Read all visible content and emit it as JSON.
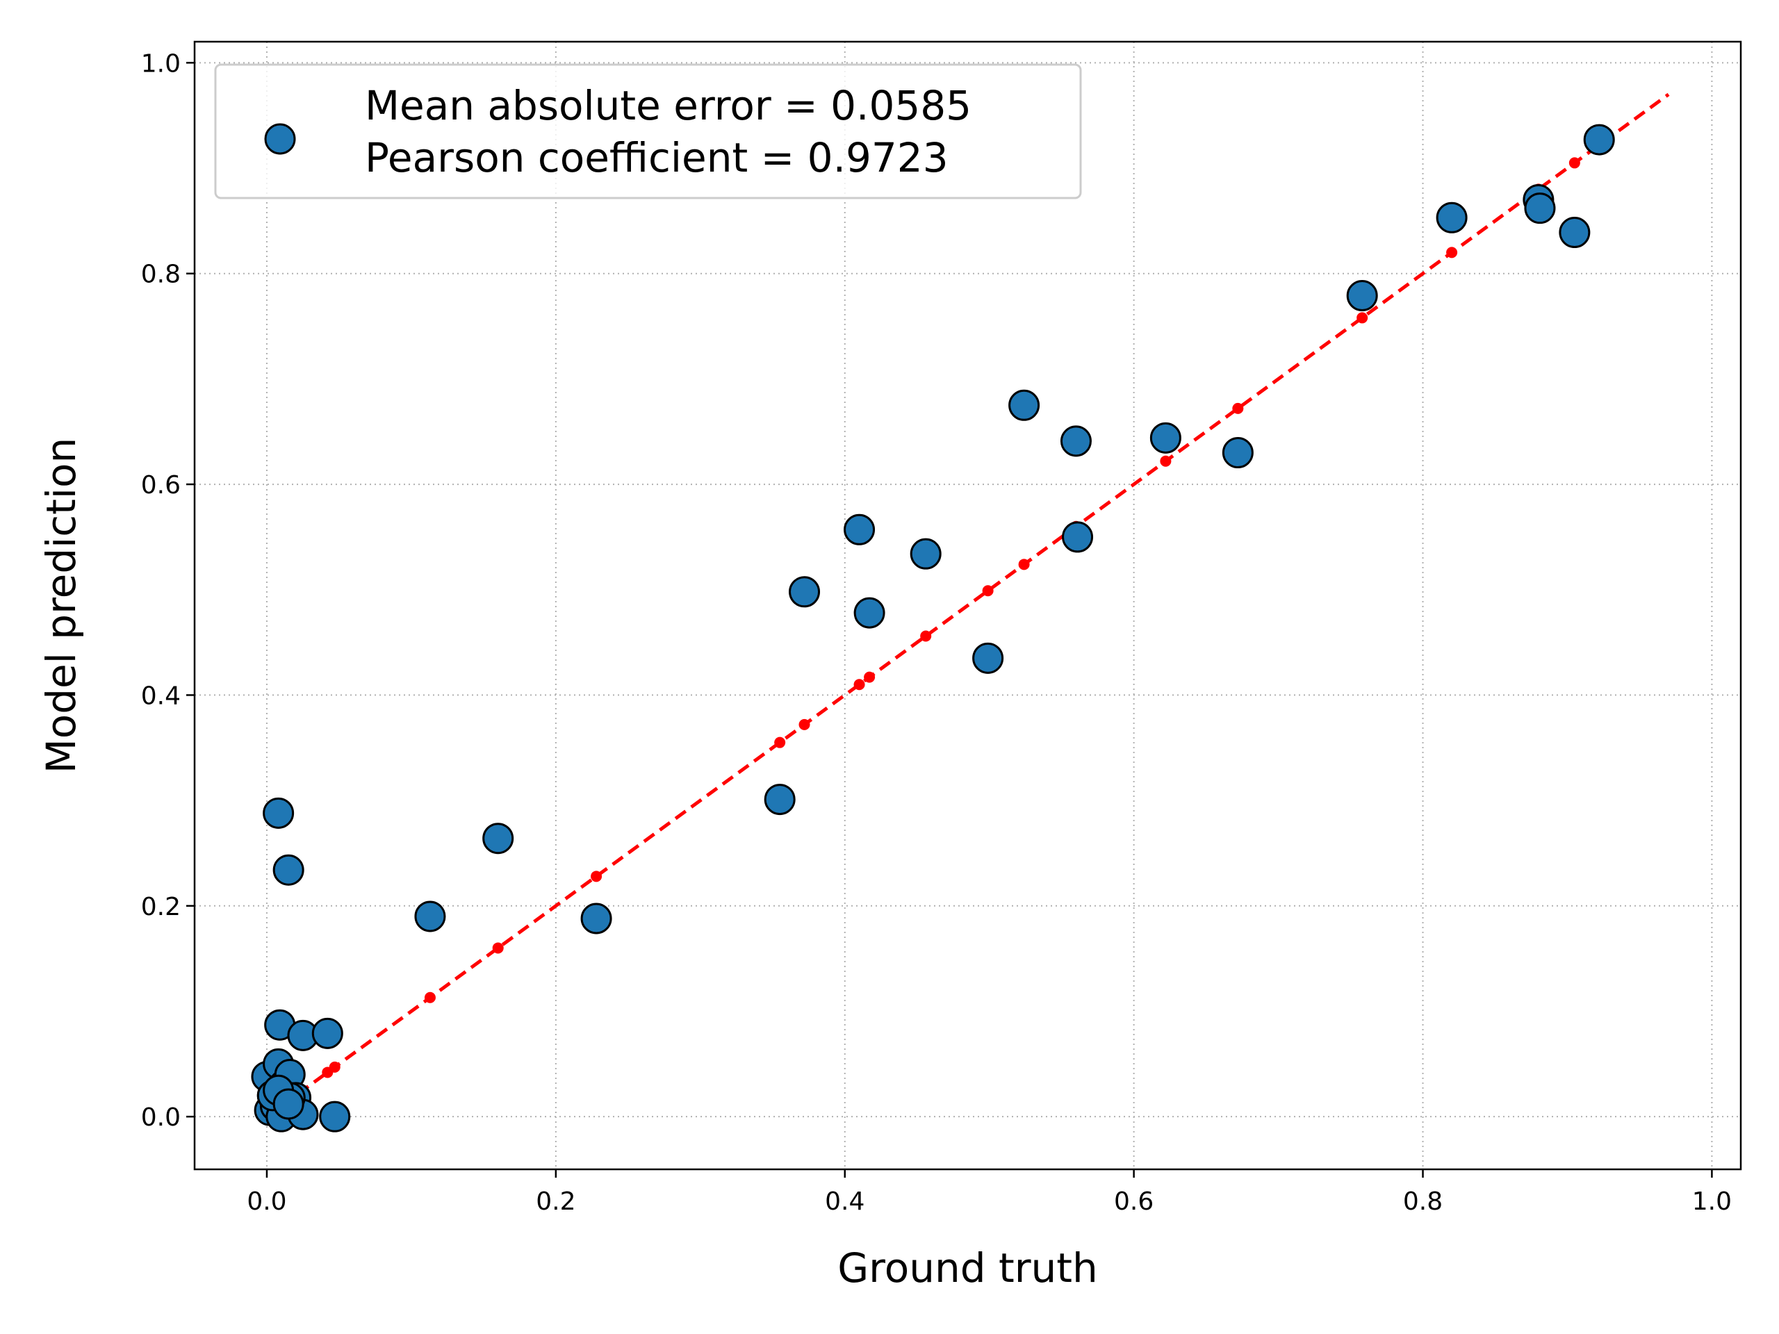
{
  "chart_data": {
    "type": "scatter",
    "xlabel": "Ground truth",
    "ylabel": "Model prediction",
    "xlim": [
      -0.05,
      1.02
    ],
    "ylim": [
      -0.05,
      1.02
    ],
    "xticks": [
      "0.0",
      "0.2",
      "0.4",
      "0.6",
      "0.8",
      "1.0"
    ],
    "yticks": [
      "0.0",
      "0.2",
      "0.4",
      "0.6",
      "0.8",
      "1.0"
    ],
    "grid": true,
    "legend_position": "upper-left",
    "legend": [
      "Mean absolute error = 0.0585",
      "Pearson coefficient = 0.9723"
    ],
    "colors": {
      "points": "#1f77b4",
      "point_edge": "#000000",
      "reference": "#ff0000",
      "grid": "#b0b0b0"
    },
    "series": [
      {
        "kind": "scatter",
        "x": [
          0.0,
          0.002,
          0.004,
          0.006,
          0.008,
          0.01,
          0.012,
          0.014,
          0.016,
          0.02,
          0.025,
          0.047,
          0.008,
          0.009,
          0.015,
          0.016,
          0.025,
          0.042,
          0.004,
          0.008,
          0.015,
          0.113,
          0.16,
          0.228,
          0.355,
          0.372,
          0.41,
          0.417,
          0.456,
          0.499,
          0.524,
          0.561,
          0.56,
          0.622,
          0.672,
          0.758,
          0.82,
          0.88,
          0.881,
          0.905,
          0.922
        ],
        "y": [
          0.038,
          0.006,
          0.02,
          0.01,
          0.05,
          0.0,
          0.03,
          0.016,
          0.04,
          0.018,
          0.002,
          0.0,
          0.288,
          0.087,
          0.234,
          0.018,
          0.077,
          0.079,
          0.02,
          0.025,
          0.012,
          0.19,
          0.264,
          0.188,
          0.301,
          0.498,
          0.557,
          0.478,
          0.534,
          0.435,
          0.675,
          0.55,
          0.641,
          0.644,
          0.63,
          0.779,
          0.853,
          0.87,
          0.862,
          0.839,
          0.927
        ]
      },
      {
        "kind": "reference-line",
        "x": [
          0.0,
          0.97
        ],
        "y": [
          0.0,
          0.97
        ],
        "markers_x": [
          0.0,
          0.004,
          0.008,
          0.012,
          0.016,
          0.02,
          0.025,
          0.042,
          0.047,
          0.113,
          0.16,
          0.228,
          0.355,
          0.372,
          0.41,
          0.417,
          0.456,
          0.499,
          0.524,
          0.56,
          0.622,
          0.672,
          0.758,
          0.82,
          0.88,
          0.905,
          0.922
        ]
      }
    ]
  }
}
